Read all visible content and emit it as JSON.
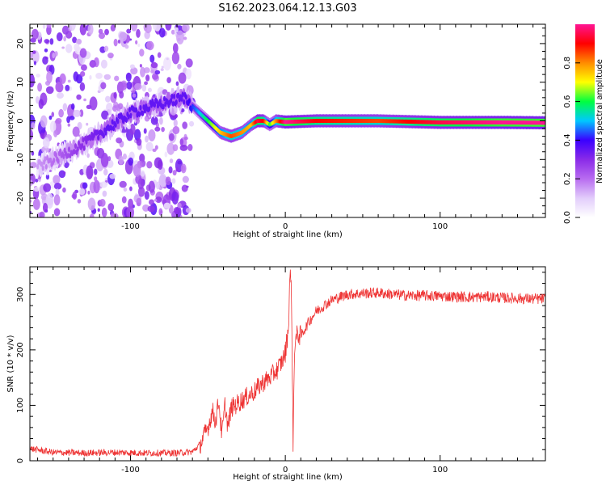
{
  "title": "S162.2023.064.12.13.G03",
  "chart_data": [
    {
      "type": "heatmap",
      "xlabel": "Height of straight line (km)",
      "ylabel": "Frequency (Hz)",
      "xlim": [
        -165,
        168
      ],
      "ylim": [
        -25,
        25
      ],
      "x_ticks": [
        -100,
        0,
        100
      ],
      "y_ticks": [
        -20,
        -10,
        0,
        10,
        20
      ],
      "colorbar": {
        "label": "Normalized spectral amplitude",
        "range": [
          0,
          1
        ],
        "ticks": [
          0.0,
          0.2,
          0.4,
          0.6,
          0.8
        ],
        "colormap": [
          "#ffffff",
          "#e2cdfb",
          "#b86cf0",
          "#8a2be8",
          "#3a00ff",
          "#00c8ff",
          "#00ff40",
          "#ffff00",
          "#ff8c00",
          "#ff0000",
          "#ff1493"
        ]
      },
      "ridge": {
        "description_points_x": [
          -160,
          -130,
          -115,
          -100,
          -85,
          -75,
          -65,
          -58,
          -50,
          -42,
          -35,
          -28,
          -22,
          -18,
          -14,
          -10,
          -6,
          0,
          20,
          60,
          100,
          140,
          168
        ],
        "frequency_y": [
          -12,
          -6,
          -2,
          2,
          4,
          5,
          6,
          3,
          0,
          -3,
          -4,
          -3,
          -1,
          0,
          0,
          -1,
          0,
          -0.3,
          0,
          0,
          -0.4,
          -0.4,
          -0.5
        ],
        "amplitude": [
          0.15,
          0.3,
          0.35,
          0.35,
          0.35,
          0.35,
          0.35,
          0.45,
          0.6,
          0.75,
          0.85,
          0.8,
          0.75,
          0.95,
          0.9,
          0.6,
          0.8,
          1.0,
          0.9,
          0.85,
          0.95,
          1.0,
          1.0
        ]
      }
    },
    {
      "type": "line",
      "xlabel": "Height of straight line (km)",
      "ylabel": "SNR (10 * v/v)",
      "xlim": [
        -165,
        168
      ],
      "ylim": [
        0,
        350
      ],
      "x_ticks": [
        -100,
        0,
        100
      ],
      "y_ticks": [
        0,
        100,
        200,
        300
      ],
      "series": [
        {
          "color": "#ee3333",
          "x": [
            -165,
            -150,
            -130,
            -110,
            -90,
            -70,
            -60,
            -55,
            -50,
            -47,
            -45,
            -43,
            -41,
            -39,
            -37,
            -35,
            -30,
            -25,
            -20,
            -15,
            -10,
            -5,
            -2,
            0,
            2,
            3,
            4,
            5,
            6,
            8,
            10,
            15,
            20,
            30,
            40,
            50,
            60,
            70,
            80,
            90,
            100,
            110,
            120,
            130,
            140,
            150,
            160,
            168
          ],
          "y": [
            22,
            15,
            14,
            15,
            14,
            14,
            16,
            30,
            60,
            90,
            70,
            110,
            45,
            100,
            60,
            95,
            105,
            115,
            125,
            140,
            150,
            165,
            180,
            195,
            240,
            340,
            300,
            30,
            210,
            230,
            225,
            250,
            270,
            290,
            300,
            302,
            303,
            300,
            298,
            298,
            297,
            296,
            295,
            296,
            294,
            293,
            292,
            292
          ]
        }
      ]
    }
  ]
}
